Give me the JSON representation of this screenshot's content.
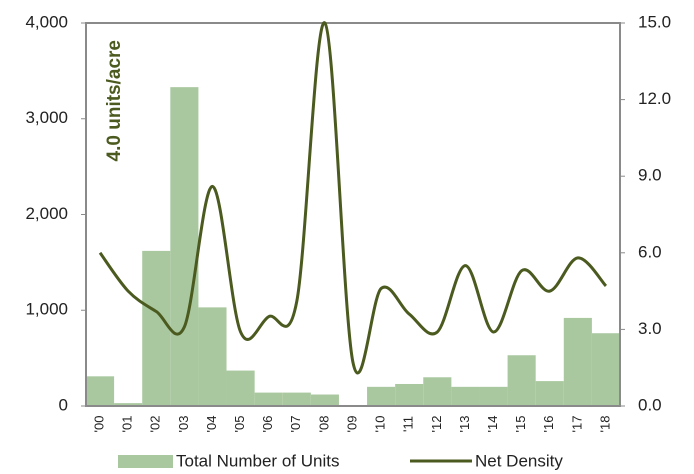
{
  "chart_data": {
    "type": "bar_line",
    "annotation": "4.0 units/acre",
    "categories": [
      "'00",
      "'01",
      "'02",
      "'03",
      "'04",
      "'05",
      "'06",
      "'07",
      "'08",
      "'09",
      "'10",
      "'11",
      "'12",
      "'13",
      "'14",
      "'15",
      "'16",
      "'17",
      "'18"
    ],
    "series": [
      {
        "name": "Total Number of Units",
        "type": "bar",
        "color": "#a9c89f",
        "values": [
          310,
          30,
          1620,
          3330,
          1030,
          370,
          140,
          140,
          120,
          0,
          200,
          230,
          300,
          200,
          200,
          530,
          260,
          920,
          760
        ]
      },
      {
        "name": "Net Density",
        "type": "line",
        "axis": "y2",
        "color": "#4b5a1f",
        "values": [
          6.0,
          4.5,
          3.7,
          3.1,
          8.6,
          2.9,
          3.5,
          4.1,
          15.0,
          1.7,
          4.6,
          3.6,
          2.9,
          5.5,
          2.9,
          5.3,
          4.5,
          5.8,
          4.7
        ]
      }
    ],
    "ylim": [
      0,
      4000
    ],
    "yticks": [
      0,
      {
        "value": 1000,
        "label": "1,000"
      },
      {
        "value": 2000,
        "label": "2,000"
      },
      {
        "value": 3000,
        "label": "3,000"
      },
      {
        "value": 4000,
        "label": "4,000"
      }
    ],
    "y2lim": [
      0,
      15
    ],
    "y2ticks": [
      {
        "value": 0,
        "label": "0.0"
      },
      {
        "value": 3,
        "label": "3.0"
      },
      {
        "value": 6,
        "label": "6.0"
      },
      {
        "value": 9,
        "label": "9.0"
      },
      {
        "value": 12,
        "label": "12.0"
      },
      {
        "value": 15,
        "label": "15.0"
      }
    ],
    "legend": "bottom"
  }
}
